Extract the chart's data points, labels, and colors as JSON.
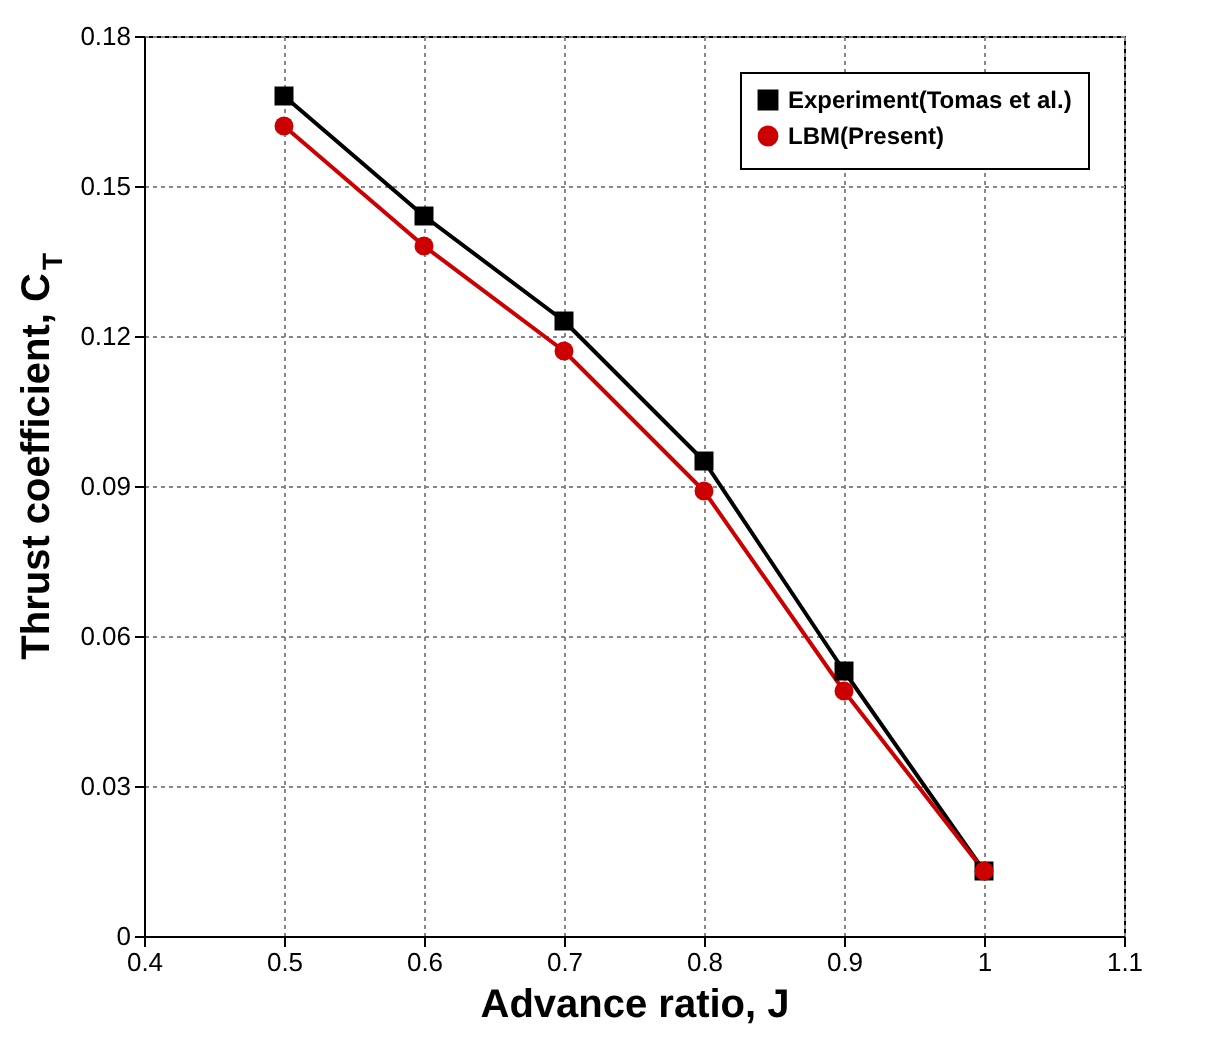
{
  "chart_data": {
    "type": "line",
    "xlabel": "Advance ratio, J",
    "ylabel": "Thrust coefficient, C$_{T}$",
    "x": [
      0.5,
      0.6,
      0.7,
      0.8,
      0.9,
      1
    ],
    "series": [
      {
        "name": "Experiment(Tomas et al.)",
        "color": "#000000",
        "marker": "square",
        "values": [
          0.168,
          0.144,
          0.123,
          0.095,
          0.053,
          0.013
        ]
      },
      {
        "name": "LBM(Present)",
        "color": "#cc0000",
        "marker": "circle",
        "values": [
          0.162,
          0.138,
          0.117,
          0.089,
          0.049,
          0.013
        ]
      }
    ],
    "xlim": [
      0.4,
      1.1
    ],
    "xticks": [
      0.4,
      0.5,
      0.6,
      0.7,
      0.8,
      0.9,
      1,
      1.1
    ],
    "ylim": [
      0,
      0.18
    ],
    "yticks": [
      0,
      0.03,
      0.06,
      0.09,
      0.12,
      0.15,
      0.18
    ],
    "grid": true,
    "legend": "top right",
    "line_style": "solid"
  }
}
